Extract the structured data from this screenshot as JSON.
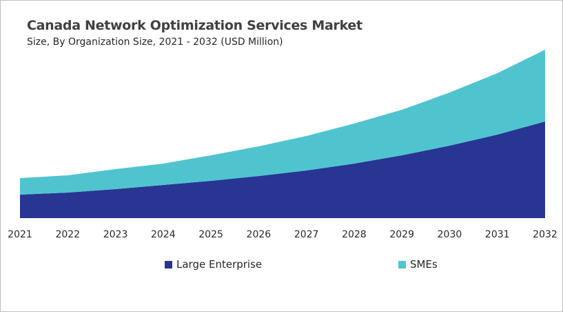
{
  "chart_data": {
    "type": "area",
    "stacked": true,
    "title": "Canada Network Optimization Services Market",
    "subtitle": "Size, By Organization Size, 2021 - 2032 (USD Million)",
    "xlabel": "",
    "ylabel": "",
    "grid": false,
    "y_axis_visible": false,
    "legend_position": "bottom",
    "categories": [
      "2021",
      "2022",
      "2023",
      "2024",
      "2025",
      "2026",
      "2027",
      "2028",
      "2029",
      "2030",
      "2031",
      "2032"
    ],
    "series": [
      {
        "name": "Large Enterprise",
        "color": "#283593",
        "values": [
          34,
          37,
          42,
          48,
          54,
          61,
          69,
          79,
          91,
          105,
          121,
          140
        ]
      },
      {
        "name": "SMEs",
        "color": "#4fc4cf",
        "values": [
          24,
          25,
          29,
          31,
          37,
          43,
          50,
          58,
          66,
          77,
          89,
          104
        ]
      }
    ]
  }
}
